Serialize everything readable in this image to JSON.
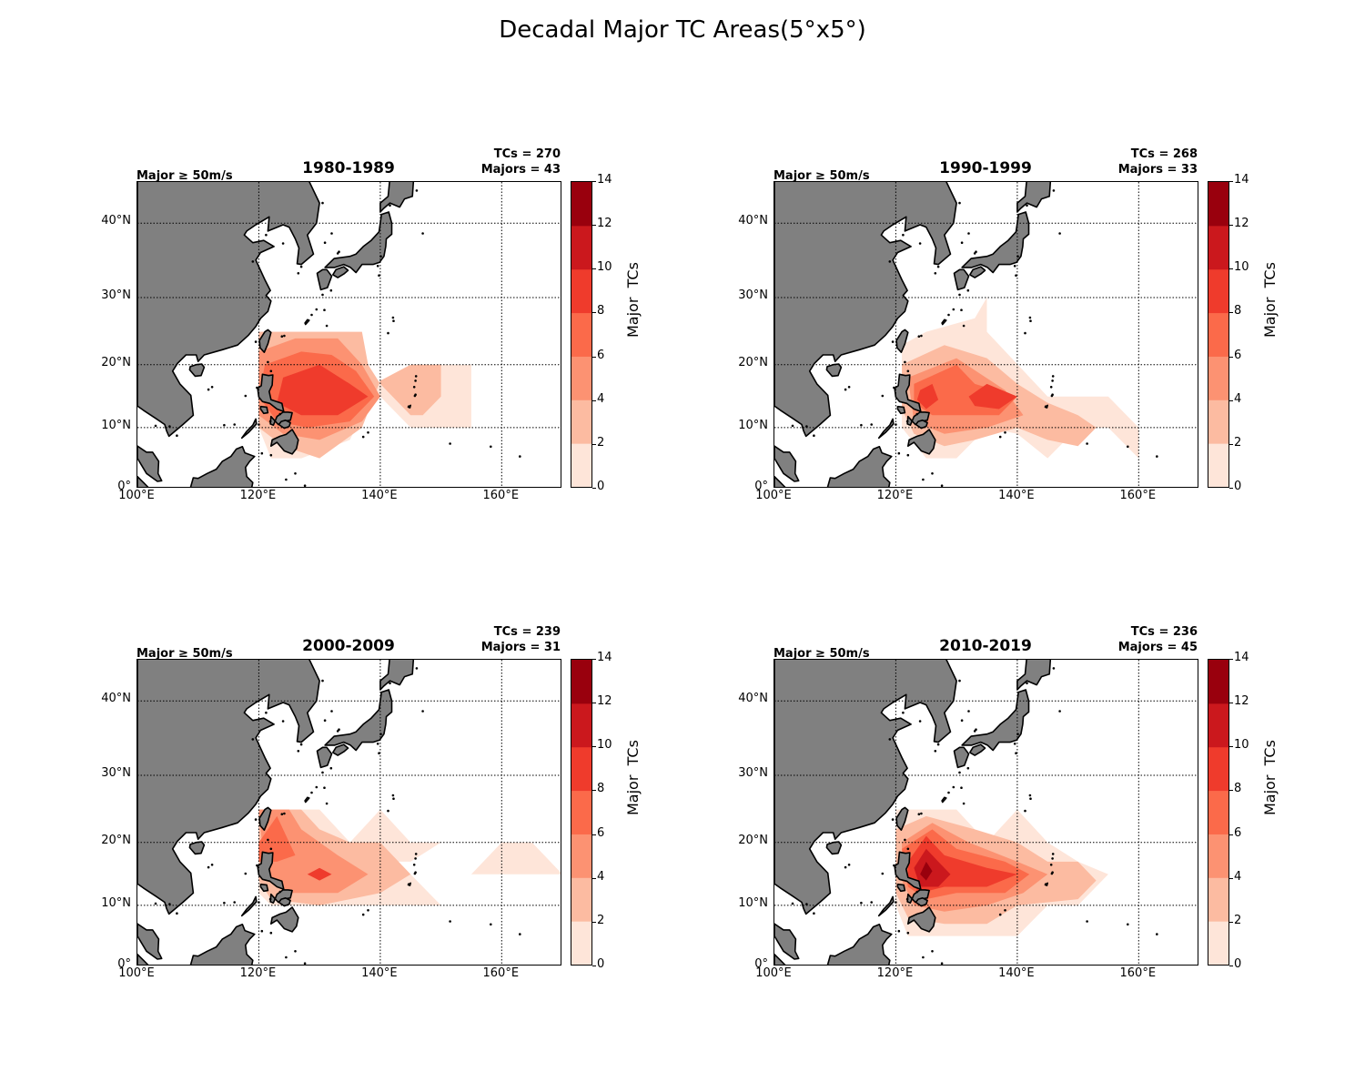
{
  "figure": {
    "title": "Decadal Major TC Areas(5°x5°)"
  },
  "colors": {
    "land": "#808080",
    "coast": "#000000",
    "ocean": "#ffffff",
    "levels": [
      "#fee5d9",
      "#fcbba1",
      "#fc9272",
      "#fb6a4a",
      "#ef3b2c",
      "#cb181d",
      "#99000d"
    ]
  },
  "axes": {
    "lat_ticks": [
      "0°",
      "10°N",
      "20°N",
      "30°N",
      "40°N"
    ],
    "lon_ticks": [
      "100°E",
      "120°E",
      "140°E",
      "160°E"
    ],
    "lat_values": [
      0,
      10,
      20,
      30,
      40
    ],
    "lon_values": [
      100,
      120,
      140,
      160
    ],
    "extent": {
      "lon_min": 100,
      "lon_max": 170,
      "lat_min": 0,
      "lat_max": 45
    },
    "colorbar_label": "Major  TCs",
    "colorbar_ticks": [
      "0",
      "2",
      "4",
      "6",
      "8",
      "10",
      "12",
      "14"
    ],
    "colorbar_levels": [
      0,
      2,
      4,
      6,
      8,
      10,
      12,
      14
    ]
  },
  "chart_data": [
    {
      "type": "heatmap",
      "title": "1980-1989",
      "note": "Major ≥ 50m/s",
      "tcs": "TCs = 270",
      "majors": "Majors = 43",
      "max_cell": {
        "lon": 130,
        "lat": 17,
        "value": 9
      }
    },
    {
      "type": "heatmap",
      "title": "1990-1999",
      "note": "Major ≥ 50m/s",
      "tcs": "TCs = 268",
      "majors": "Majors = 33",
      "max_cell": {
        "lon": 125,
        "lat": 15,
        "value": 9
      }
    },
    {
      "type": "heatmap",
      "title": "2000-2009",
      "note": "Major ≥ 50m/s",
      "tcs": "TCs = 239",
      "majors": "Majors = 31",
      "max_cell": {
        "lon": 130,
        "lat": 15,
        "value": 7
      }
    },
    {
      "type": "heatmap",
      "title": "2010-2019",
      "note": "Major ≥ 50m/s",
      "tcs": "TCs = 236",
      "majors": "Majors = 45",
      "max_cell": {
        "lon": 125,
        "lat": 15,
        "value": 12
      }
    }
  ]
}
